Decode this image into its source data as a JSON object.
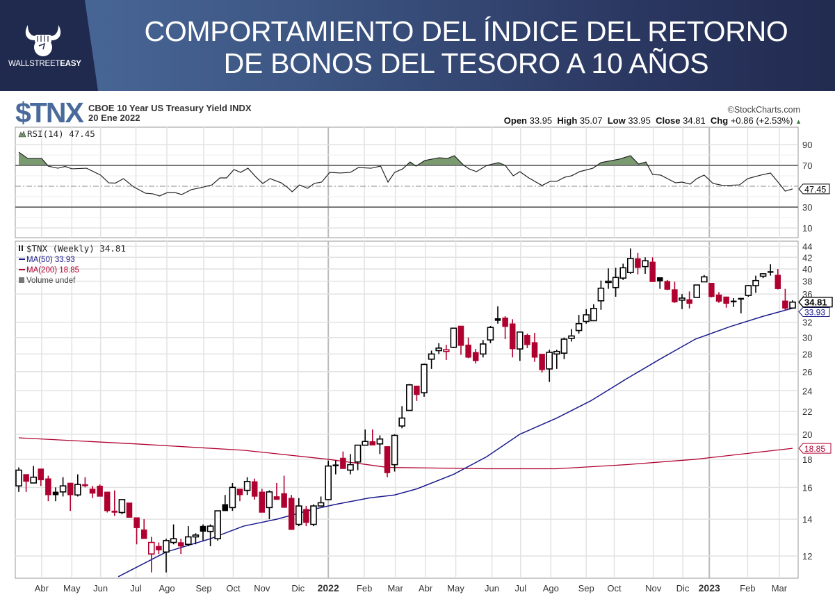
{
  "header": {
    "title_line1": "COMPORTAMIENTO DEL ÍNDICE DEL RETORNO",
    "title_line2": "DE BONOS DEL TESORO A 10 AÑOS",
    "logo_text_a": "WALLSTREET",
    "logo_text_b": "EASY"
  },
  "chart_header": {
    "ticker": "$TNX",
    "description": "CBOE 10 Year US Treasury Yield INDX",
    "date": "20 Ene 2022",
    "credit": "©StockCharts.com",
    "open_label": "Open",
    "open": "33.95",
    "high_label": "High",
    "high": "35.07",
    "low_label": "Low",
    "low": "33.95",
    "close_label": "Close",
    "close": "34.81",
    "chg_label": "Chg",
    "chg": "+0.86 (+2.53%)",
    "chg_icon": "up-triangle-icon"
  },
  "colors": {
    "up": "#000000",
    "down": "#b0002f",
    "ma50": "#1a1a8c",
    "ma200": "#b0002f",
    "rsi_fill": "#7a9a70",
    "brand": "#4a6a9b"
  },
  "chart_data": {
    "type": "candlestick",
    "title": "$TNX (Weekly) 34.81",
    "scale": "log",
    "ylim": [
      10.9,
      44.6
    ],
    "grid": true,
    "legend": [
      "$TNX (Weekly) 34.81",
      "MA(50) 33.93",
      "MA(200) 18.85",
      "Volume undef"
    ],
    "legend_position": "top-left",
    "y_ticks": [
      12,
      14,
      16,
      18,
      20,
      22,
      24,
      26,
      28,
      30,
      32,
      36,
      38,
      40,
      42,
      44
    ],
    "x_labels": [
      {
        "label": "Abr",
        "week": 3.1
      },
      {
        "label": "May",
        "week": 7.2
      },
      {
        "label": "Jun",
        "week": 11.1
      },
      {
        "label": "Jul",
        "week": 15.9
      },
      {
        "label": "Ago",
        "week": 20.1
      },
      {
        "label": "Sep",
        "week": 25.1
      },
      {
        "label": "Oct",
        "week": 29.1
      },
      {
        "label": "Nov",
        "week": 33.0
      },
      {
        "label": "Dic",
        "week": 37.9
      },
      {
        "label": "2022",
        "week": 42.0,
        "year": true
      },
      {
        "label": "Feb",
        "week": 46.9
      },
      {
        "label": "Mar",
        "week": 51.1
      },
      {
        "label": "Abr",
        "week": 55.2
      },
      {
        "label": "May",
        "week": 59.3
      },
      {
        "label": "Jun",
        "week": 64.2
      },
      {
        "label": "Jul",
        "week": 68.1
      },
      {
        "label": "Ago",
        "week": 72.2
      },
      {
        "label": "Sep",
        "week": 77.0
      },
      {
        "label": "Oct",
        "week": 80.8
      },
      {
        "label": "Nov",
        "week": 86.1
      },
      {
        "label": "Dic",
        "week": 90.1
      },
      {
        "label": "2023",
        "week": 93.7,
        "year": true
      },
      {
        "label": "Feb",
        "week": 98.9
      },
      {
        "label": "Mar",
        "week": 103.2
      }
    ],
    "ohlc": [
      [
        16.1,
        17.4,
        15.7,
        17.2
      ],
      [
        16.9,
        16.9,
        15.7,
        16.4
      ],
      [
        16.3,
        17.5,
        16.3,
        16.7
      ],
      [
        17.3,
        17.3,
        16.1,
        16.5
      ],
      [
        16.6,
        16.8,
        15.1,
        15.5
      ],
      [
        15.7,
        16.0,
        15.1,
        15.5
      ],
      [
        15.7,
        16.7,
        15.4,
        16.1
      ],
      [
        16.3,
        16.3,
        14.5,
        15.5
      ],
      [
        15.5,
        16.9,
        15.4,
        16.2
      ],
      [
        16.2,
        16.7,
        16.0,
        16.1
      ],
      [
        15.9,
        16.1,
        15.3,
        15.6
      ],
      [
        16.1,
        16.2,
        15.4,
        15.4
      ],
      [
        15.7,
        15.7,
        14.4,
        14.5
      ],
      [
        14.5,
        15.8,
        14.2,
        14.4
      ],
      [
        14.4,
        15.2,
        14.3,
        15.2
      ],
      [
        15.0,
        15.0,
        14.1,
        14.1
      ],
      [
        14.1,
        14.1,
        12.6,
        13.5
      ],
      [
        13.4,
        14.0,
        12.9,
        12.9
      ],
      [
        12.1,
        13.0,
        11.2,
        12.7
      ],
      [
        12.5,
        12.7,
        12.1,
        12.3
      ],
      [
        12.2,
        12.9,
        11.2,
        12.8
      ],
      [
        12.7,
        13.7,
        12.6,
        12.9
      ],
      [
        12.7,
        12.9,
        12.1,
        12.5
      ],
      [
        12.6,
        13.6,
        12.5,
        13.0
      ],
      [
        13.0,
        13.2,
        12.6,
        13.1
      ],
      [
        13.6,
        13.7,
        12.8,
        13.3
      ],
      [
        13.3,
        13.7,
        12.5,
        13.6
      ],
      [
        12.9,
        14.5,
        12.8,
        14.5
      ],
      [
        14.9,
        15.5,
        14.5,
        14.5
      ],
      [
        14.7,
        16.3,
        14.5,
        16.0
      ],
      [
        15.9,
        15.9,
        15.1,
        15.5
      ],
      [
        15.8,
        16.7,
        15.5,
        16.4
      ],
      [
        16.4,
        16.6,
        15.2,
        15.4
      ],
      [
        15.7,
        15.9,
        14.4,
        14.4
      ],
      [
        14.7,
        15.8,
        14.0,
        15.7
      ],
      [
        15.4,
        16.3,
        15.2,
        15.2
      ],
      [
        15.6,
        16.8,
        14.7,
        14.7
      ],
      [
        15.3,
        15.5,
        13.4,
        13.4
      ],
      [
        13.7,
        15.3,
        13.6,
        14.8
      ],
      [
        14.6,
        14.8,
        13.6,
        13.8
      ],
      [
        13.7,
        14.9,
        13.6,
        14.8
      ],
      [
        14.8,
        15.4,
        14.8,
        15.0
      ],
      [
        15.2,
        17.9,
        15.2,
        17.5
      ],
      [
        17.6,
        17.9,
        16.9,
        17.5
      ],
      [
        18.1,
        18.6,
        17.3,
        17.3
      ],
      [
        17.2,
        18.4,
        16.9,
        17.6
      ],
      [
        17.8,
        19.1,
        17.2,
        19.1
      ],
      [
        19.1,
        20.4,
        19.1,
        19.4
      ],
      [
        19.4,
        20.4,
        19.1,
        19.1
      ],
      [
        19.2,
        19.9,
        18.4,
        19.6
      ],
      [
        19.0,
        19.0,
        16.7,
        17.0
      ],
      [
        17.6,
        20.0,
        17.1,
        19.9
      ],
      [
        20.7,
        22.5,
        20.5,
        21.4
      ],
      [
        22.1,
        24.7,
        22.1,
        24.6
      ],
      [
        24.5,
        24.5,
        23.0,
        23.6
      ],
      [
        23.8,
        26.9,
        23.4,
        26.8
      ],
      [
        27.4,
        28.4,
        26.3,
        28.0
      ],
      [
        28.4,
        29.3,
        28.0,
        28.7
      ],
      [
        28.3,
        29.1,
        27.3,
        28.5
      ],
      [
        28.8,
        31.2,
        28.7,
        31.2
      ],
      [
        31.5,
        31.5,
        27.9,
        29.0
      ],
      [
        29.1,
        30.0,
        27.5,
        27.6
      ],
      [
        28.2,
        28.6,
        26.9,
        27.2
      ],
      [
        28.0,
        29.7,
        27.6,
        29.2
      ],
      [
        29.7,
        31.5,
        29.3,
        31.3
      ],
      [
        32.5,
        34.2,
        31.8,
        32.2
      ],
      [
        32.6,
        32.8,
        29.8,
        31.4
      ],
      [
        31.8,
        32.4,
        27.6,
        28.6
      ],
      [
        28.6,
        30.7,
        27.2,
        30.7
      ],
      [
        30.3,
        30.5,
        28.7,
        29.1
      ],
      [
        29.4,
        30.6,
        27.1,
        27.6
      ],
      [
        28.0,
        28.0,
        25.9,
        26.2
      ],
      [
        26.3,
        28.5,
        24.9,
        28.2
      ],
      [
        28.0,
        28.5,
        26.3,
        28.3
      ],
      [
        28.1,
        30.0,
        27.4,
        29.8
      ],
      [
        29.9,
        31.1,
        29.5,
        30.2
      ],
      [
        30.9,
        33.0,
        30.5,
        31.8
      ],
      [
        32.1,
        33.8,
        31.8,
        33.0
      ],
      [
        32.2,
        34.5,
        32.2,
        33.9
      ],
      [
        35.0,
        38.1,
        33.7,
        36.9
      ],
      [
        37.8,
        40.1,
        36.8,
        38.0
      ],
      [
        37.0,
        40.2,
        35.6,
        38.6
      ],
      [
        38.5,
        40.9,
        38.2,
        40.2
      ],
      [
        39.4,
        43.6,
        39.2,
        41.8
      ],
      [
        41.8,
        42.8,
        39.1,
        40.2
      ],
      [
        40.4,
        42.0,
        39.2,
        41.4
      ],
      [
        41.2,
        42.0,
        37.9,
        37.9
      ],
      [
        38.6,
        38.6,
        36.8,
        38.0
      ],
      [
        38.0,
        38.2,
        36.6,
        36.7
      ],
      [
        36.7,
        37.9,
        34.7,
        34.8
      ],
      [
        35.1,
        36.0,
        33.8,
        35.4
      ],
      [
        35.2,
        36.4,
        33.9,
        34.6
      ],
      [
        35.5,
        37.4,
        35.5,
        37.4
      ],
      [
        37.9,
        39.0,
        37.9,
        38.7
      ],
      [
        37.7,
        37.7,
        35.5,
        35.6
      ],
      [
        35.9,
        36.3,
        34.7,
        34.9
      ],
      [
        35.6,
        35.6,
        34.0,
        34.6
      ],
      [
        35.0,
        35.4,
        34.1,
        34.8
      ],
      [
        35.4,
        35.4,
        33.2,
        35.2
      ],
      [
        35.8,
        37.4,
        35.6,
        37.3
      ],
      [
        37.3,
        38.9,
        36.2,
        38.1
      ],
      [
        38.8,
        39.3,
        38.5,
        39.2
      ],
      [
        39.6,
        40.8,
        38.9,
        39.4
      ],
      [
        39.0,
        40.0,
        36.7,
        36.8
      ],
      [
        35.0,
        36.8,
        33.6,
        33.9
      ],
      [
        33.95,
        35.07,
        33.95,
        34.81
      ]
    ],
    "ma50": {
      "label": "MA(50)",
      "last": "33.93",
      "points": [
        [
          13.5,
          11.0
        ],
        [
          20,
          12.2
        ],
        [
          26,
          12.9
        ],
        [
          30.5,
          13.6
        ],
        [
          35,
          14.0
        ],
        [
          40,
          14.6
        ],
        [
          43,
          14.9
        ],
        [
          47.5,
          15.3
        ],
        [
          51,
          15.5
        ],
        [
          54,
          15.9
        ],
        [
          59,
          16.9
        ],
        [
          63.5,
          18.2
        ],
        [
          68,
          20.0
        ],
        [
          73,
          21.4
        ],
        [
          77.6,
          23.0
        ],
        [
          82.4,
          25.2
        ],
        [
          87,
          27.4
        ],
        [
          91.8,
          29.8
        ],
        [
          96.5,
          31.4
        ],
        [
          101,
          32.8
        ],
        [
          105,
          33.93
        ]
      ]
    },
    "ma200": {
      "label": "MA(200)",
      "last": "18.85",
      "points": [
        [
          0,
          19.7
        ],
        [
          16,
          19.2
        ],
        [
          30.5,
          18.7
        ],
        [
          42,
          18.0
        ],
        [
          50,
          17.4
        ],
        [
          63.5,
          17.3
        ],
        [
          73,
          17.3
        ],
        [
          82.4,
          17.6
        ],
        [
          91.8,
          18.0
        ],
        [
          105,
          18.85
        ]
      ]
    },
    "volume_label": "Volume undef",
    "price_legend": "$TNX (Weekly) 34.81",
    "last_price": "34.81",
    "rsi": {
      "label": "RSI(14) 47.45",
      "last": "47.45",
      "ticks": [
        90,
        70,
        30,
        10
      ],
      "overbought": 70,
      "oversold": 30,
      "mid": 50,
      "points": [
        [
          0,
          82.7
        ],
        [
          1.2,
          76.7
        ],
        [
          3.1,
          76.7
        ],
        [
          4.0,
          69.3
        ],
        [
          5.3,
          67.3
        ],
        [
          6.3,
          69
        ],
        [
          7.2,
          66.7
        ],
        [
          9.2,
          67.3
        ],
        [
          11.1,
          60.7
        ],
        [
          12.2,
          53.3
        ],
        [
          13.1,
          53
        ],
        [
          14.2,
          57.3
        ],
        [
          15.6,
          49.3
        ],
        [
          17.2,
          43.3
        ],
        [
          18.2,
          42.7
        ],
        [
          19.1,
          40.7
        ],
        [
          20.2,
          44
        ],
        [
          21.2,
          44
        ],
        [
          22.1,
          42
        ],
        [
          23.4,
          46.7
        ],
        [
          25.1,
          49.3
        ],
        [
          26.2,
          51.3
        ],
        [
          27.3,
          58
        ],
        [
          28.2,
          58
        ],
        [
          29.2,
          66
        ],
        [
          30.1,
          63.3
        ],
        [
          31.1,
          67.3
        ],
        [
          32.2,
          58.7
        ],
        [
          33.1,
          52.7
        ],
        [
          34.1,
          57.3
        ],
        [
          35.6,
          53.3
        ],
        [
          36.5,
          48.7
        ],
        [
          37.1,
          44.7
        ],
        [
          38.1,
          51.3
        ],
        [
          39.2,
          48
        ],
        [
          40.1,
          52.7
        ],
        [
          41.1,
          54
        ],
        [
          42.2,
          63.3
        ],
        [
          43.6,
          62.7
        ],
        [
          45.0,
          63.3
        ],
        [
          46.1,
          68
        ],
        [
          47.8,
          67.3
        ],
        [
          49.1,
          69.3
        ],
        [
          50.1,
          54
        ],
        [
          51.0,
          63.3
        ],
        [
          52.1,
          66.7
        ],
        [
          53.1,
          73.3
        ],
        [
          53.9,
          69.3
        ],
        [
          55.1,
          74.7
        ],
        [
          57.0,
          77.3
        ],
        [
          58.2,
          76.7
        ],
        [
          59.1,
          79.3
        ],
        [
          60.4,
          70
        ],
        [
          61.1,
          66.7
        ],
        [
          62.1,
          64
        ],
        [
          63.5,
          70
        ],
        [
          65.1,
          72.7
        ],
        [
          66.0,
          70
        ],
        [
          67.1,
          60
        ],
        [
          68.0,
          64
        ],
        [
          69.2,
          58
        ],
        [
          71.0,
          50.7
        ],
        [
          72.1,
          54.7
        ],
        [
          73.0,
          54.7
        ],
        [
          74.1,
          58.7
        ],
        [
          75.0,
          60
        ],
        [
          76.1,
          64
        ],
        [
          77.9,
          67.3
        ],
        [
          79.0,
          72.7
        ],
        [
          81.5,
          76
        ],
        [
          83.0,
          79.3
        ],
        [
          84.1,
          71.3
        ],
        [
          85.1,
          73.3
        ],
        [
          86.0,
          61.3
        ],
        [
          87.1,
          60.7
        ],
        [
          89.1,
          53.3
        ],
        [
          90.0,
          54
        ],
        [
          91.1,
          52
        ],
        [
          92.0,
          57.3
        ],
        [
          93.0,
          60.7
        ],
        [
          94.2,
          52.7
        ],
        [
          95.6,
          50.7
        ],
        [
          97.8,
          51.3
        ],
        [
          98.9,
          57.3
        ],
        [
          100.7,
          60.7
        ],
        [
          102.0,
          62.7
        ],
        [
          103.1,
          53.3
        ],
        [
          104.0,
          45.3
        ],
        [
          105,
          47.45
        ]
      ]
    }
  }
}
